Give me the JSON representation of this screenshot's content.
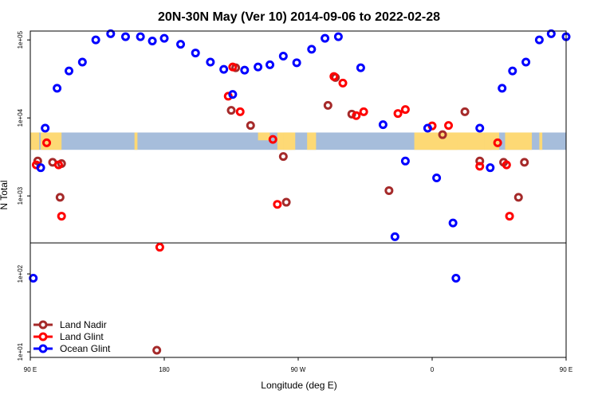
{
  "chart_data": {
    "type": "scatter",
    "title": "20N-30N May (Ver 10)   2014-09-06 to 2022-02-28",
    "xlabel": "Longitude (deg E)",
    "ylabel": "N Total",
    "x_scale": "linear",
    "y_scale": "log",
    "xlim": [
      90,
      450
    ],
    "ylim": [
      8.5,
      130000
    ],
    "x_ticks": [
      {
        "value": 90,
        "label": "90 E"
      },
      {
        "value": 180,
        "label": "180"
      },
      {
        "value": 270,
        "label": "90 W"
      },
      {
        "value": 360,
        "label": "0"
      },
      {
        "value": 450,
        "label": "90 E"
      },
      {
        "value": 540,
        "label": "180"
      }
    ],
    "y_ticks": [
      {
        "value": 10,
        "label": "1e+01"
      },
      {
        "value": 100,
        "label": "1e+02"
      },
      {
        "value": 1000,
        "label": "1e+03"
      },
      {
        "value": 10000,
        "label": "1e+04"
      },
      {
        "value": 100000,
        "label": "1e+05"
      }
    ],
    "reference_line": 250,
    "map_band": {
      "y_top": 6500,
      "y_bottom": 3900,
      "ocean_color": "#a6bddb",
      "land_color": "#fdd975"
    },
    "legend": {
      "position": "bottom-left"
    },
    "series": [
      {
        "name": "Land Nadir",
        "color": "#a52a2a",
        "points": [
          [
            95,
            2800
          ],
          [
            105,
            2700
          ],
          [
            110,
            960
          ],
          [
            111,
            2600
          ],
          [
            175,
            10.5
          ],
          [
            225,
            12500
          ],
          [
            228,
            44000
          ],
          [
            238,
            8000
          ],
          [
            260,
            3200
          ],
          [
            262,
            830
          ],
          [
            290,
            14500
          ],
          [
            295,
            33000
          ],
          [
            306,
            11200
          ],
          [
            331,
            1170
          ],
          [
            367,
            6100
          ],
          [
            382,
            12000
          ],
          [
            392,
            2800
          ],
          [
            408,
            2700
          ],
          [
            418,
            960
          ],
          [
            422,
            2700
          ]
        ]
      },
      {
        "name": "Land Glint",
        "color": "#ff0000",
        "points": [
          [
            94,
            2500
          ],
          [
            101,
            4800
          ],
          [
            109,
            2500
          ],
          [
            111,
            550
          ],
          [
            177,
            220
          ],
          [
            223,
            19000
          ],
          [
            226,
            45000
          ],
          [
            231,
            12000
          ],
          [
            253,
            5300
          ],
          [
            256,
            780
          ],
          [
            294,
            34000
          ],
          [
            300,
            28000
          ],
          [
            309,
            10700
          ],
          [
            314,
            12000
          ],
          [
            337,
            11400
          ],
          [
            342,
            12800
          ],
          [
            360,
            7900
          ],
          [
            371,
            8000
          ],
          [
            392,
            2400
          ],
          [
            404,
            4800
          ],
          [
            410,
            2500
          ],
          [
            412,
            550
          ]
        ]
      },
      {
        "name": "Ocean Glint",
        "color": "#0000ff",
        "points": [
          [
            92,
            88
          ],
          [
            97,
            2300
          ],
          [
            100,
            7400
          ],
          [
            108,
            24000
          ],
          [
            116,
            40000
          ],
          [
            125,
            52000
          ],
          [
            134,
            100000
          ],
          [
            144,
            120000
          ],
          [
            154,
            110000
          ],
          [
            164,
            110000
          ],
          [
            172,
            97000
          ],
          [
            180,
            105000
          ],
          [
            191,
            88000
          ],
          [
            201,
            68000
          ],
          [
            211,
            52000
          ],
          [
            220,
            42000
          ],
          [
            226,
            20000
          ],
          [
            234,
            41000
          ],
          [
            243,
            45000
          ],
          [
            251,
            48000
          ],
          [
            260,
            62000
          ],
          [
            269,
            51000
          ],
          [
            279,
            76000
          ],
          [
            288,
            105000
          ],
          [
            297,
            110000
          ],
          [
            312,
            44000
          ],
          [
            327,
            8200
          ],
          [
            335,
            300
          ],
          [
            342,
            2800
          ],
          [
            357,
            7400
          ],
          [
            363,
            1700
          ],
          [
            374,
            450
          ],
          [
            376,
            88
          ],
          [
            392,
            7400
          ],
          [
            399,
            2300
          ],
          [
            407,
            24000
          ],
          [
            414,
            40000
          ],
          [
            423,
            52000
          ],
          [
            432,
            100000
          ],
          [
            440,
            120000
          ],
          [
            450,
            110000
          ]
        ]
      }
    ]
  }
}
